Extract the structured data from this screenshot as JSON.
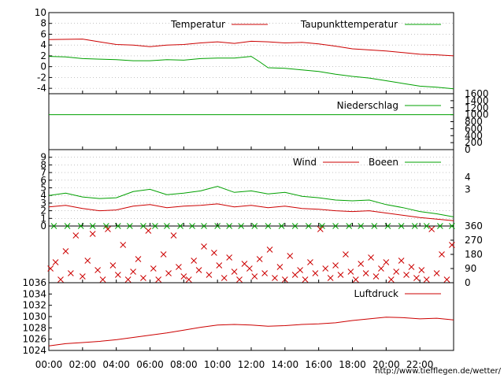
{
  "colors": {
    "red": "#cc0000",
    "green": "#00a000"
  },
  "credit": "http://www.tiefflegen.de/wetter/",
  "chart_data": [
    {
      "type": "line",
      "panel": "temperature",
      "x_unit": "hour",
      "ylim": [
        -5,
        10
      ],
      "y_ticks": [
        "10",
        "8",
        "6",
        "4",
        "2",
        "0",
        "-2",
        "-4"
      ],
      "legend_placement": "top-right",
      "series": [
        {
          "name": "Temperatur",
          "color": "red",
          "points": [
            [
              0,
              5.0
            ],
            [
              2,
              5.1
            ],
            [
              3,
              4.6
            ],
            [
              4,
              4.1
            ],
            [
              5,
              4.0
            ],
            [
              6,
              3.7
            ],
            [
              7,
              4.0
            ],
            [
              8,
              4.1
            ],
            [
              9,
              4.4
            ],
            [
              10,
              4.6
            ],
            [
              11,
              4.3
            ],
            [
              12,
              4.7
            ],
            [
              13,
              4.6
            ],
            [
              14,
              4.4
            ],
            [
              15,
              4.5
            ],
            [
              16,
              4.2
            ],
            [
              17,
              3.8
            ],
            [
              18,
              3.3
            ],
            [
              19,
              3.1
            ],
            [
              20,
              2.9
            ],
            [
              21,
              2.6
            ],
            [
              22,
              2.3
            ],
            [
              23,
              2.2
            ],
            [
              24,
              2.0
            ]
          ]
        },
        {
          "name": "Taupunkttemperatur",
          "color": "green",
          "points": [
            [
              0,
              1.9
            ],
            [
              1,
              1.8
            ],
            [
              2,
              1.5
            ],
            [
              3,
              1.4
            ],
            [
              4,
              1.3
            ],
            [
              5,
              1.1
            ],
            [
              6,
              1.1
            ],
            [
              7,
              1.3
            ],
            [
              8,
              1.2
            ],
            [
              9,
              1.5
            ],
            [
              10,
              1.6
            ],
            [
              11,
              1.6
            ],
            [
              12,
              1.9
            ],
            [
              12.5,
              0.9
            ],
            [
              13,
              -0.2
            ],
            [
              14,
              -0.3
            ],
            [
              15,
              -0.6
            ],
            [
              16,
              -0.9
            ],
            [
              17,
              -1.4
            ],
            [
              18,
              -1.8
            ],
            [
              19,
              -2.1
            ],
            [
              20,
              -2.6
            ],
            [
              21,
              -3.1
            ],
            [
              22,
              -3.6
            ],
            [
              23,
              -3.8
            ],
            [
              24,
              -4.1
            ]
          ]
        }
      ]
    },
    {
      "type": "line",
      "panel": "precipitation",
      "x_unit": "hour",
      "ylim": [
        0,
        1600
      ],
      "y_ticks_right": [
        "1600",
        "1400",
        "1200",
        "1000",
        "800",
        "600",
        "400",
        "200",
        "0"
      ],
      "series": [
        {
          "name": "Niederschlag",
          "color": "green",
          "points": [
            [
              0,
              1000
            ],
            [
              24,
              1000
            ]
          ]
        }
      ]
    },
    {
      "type": "line",
      "panel": "wind",
      "x_unit": "hour",
      "ylim": [
        0,
        10
      ],
      "y_ticks": [
        "9",
        "8",
        "7",
        "6",
        "5",
        "4",
        "3",
        "2",
        "1",
        "0"
      ],
      "y_ticks_right": [
        "4",
        "3"
      ],
      "series": [
        {
          "name": "Wind",
          "color": "red",
          "points": [
            [
              0,
              2.5
            ],
            [
              1,
              2.7
            ],
            [
              2,
              2.3
            ],
            [
              3,
              2.0
            ],
            [
              4,
              2.1
            ],
            [
              5,
              2.6
            ],
            [
              6,
              2.8
            ],
            [
              7,
              2.4
            ],
            [
              8,
              2.6
            ],
            [
              9,
              2.7
            ],
            [
              10,
              2.9
            ],
            [
              11,
              2.5
            ],
            [
              12,
              2.7
            ],
            [
              13,
              2.4
            ],
            [
              14,
              2.6
            ],
            [
              15,
              2.3
            ],
            [
              16,
              2.2
            ],
            [
              17,
              2.0
            ],
            [
              18,
              1.9
            ],
            [
              19,
              2.0
            ],
            [
              20,
              1.7
            ],
            [
              21,
              1.4
            ],
            [
              22,
              1.1
            ],
            [
              23,
              0.9
            ],
            [
              24,
              0.7
            ]
          ]
        },
        {
          "name": "Boeen",
          "color": "green",
          "points": [
            [
              0,
              4.0
            ],
            [
              1,
              4.3
            ],
            [
              2,
              3.8
            ],
            [
              3,
              3.6
            ],
            [
              4,
              3.7
            ],
            [
              5,
              4.5
            ],
            [
              6,
              4.8
            ],
            [
              7,
              4.1
            ],
            [
              8,
              4.3
            ],
            [
              9,
              4.6
            ],
            [
              10,
              5.2
            ],
            [
              11,
              4.4
            ],
            [
              12,
              4.6
            ],
            [
              13,
              4.2
            ],
            [
              14,
              4.4
            ],
            [
              15,
              3.9
            ],
            [
              16,
              3.7
            ],
            [
              17,
              3.4
            ],
            [
              18,
              3.3
            ],
            [
              19,
              3.4
            ],
            [
              20,
              2.8
            ],
            [
              21,
              2.4
            ],
            [
              22,
              1.9
            ],
            [
              23,
              1.6
            ],
            [
              24,
              1.2
            ]
          ]
        }
      ]
    },
    {
      "type": "scatter",
      "panel": "wind-direction",
      "x_unit": "hour",
      "ylim": [
        0,
        360
      ],
      "y_ticks_right": [
        "360",
        "270",
        "180",
        "90",
        "0"
      ],
      "marker": "x",
      "series": [
        {
          "color": "green",
          "points": [
            [
              0.3,
              360
            ],
            [
              1.1,
              360
            ],
            [
              1.9,
              360
            ],
            [
              2.6,
              360
            ],
            [
              3.4,
              360
            ],
            [
              4.1,
              360
            ],
            [
              4.8,
              360
            ],
            [
              5.6,
              360
            ],
            [
              6.3,
              360
            ],
            [
              7.0,
              360
            ],
            [
              7.8,
              360
            ],
            [
              8.5,
              360
            ],
            [
              9.2,
              360
            ],
            [
              10.0,
              360
            ],
            [
              10.7,
              360
            ],
            [
              11.4,
              360
            ],
            [
              12.2,
              360
            ],
            [
              13.0,
              360
            ],
            [
              13.8,
              360
            ],
            [
              14.6,
              360
            ],
            [
              15.4,
              360
            ],
            [
              16.2,
              360
            ],
            [
              17.0,
              360
            ],
            [
              17.8,
              360
            ],
            [
              18.5,
              360
            ],
            [
              19.3,
              360
            ],
            [
              20.1,
              360
            ],
            [
              20.9,
              360
            ],
            [
              21.7,
              360
            ],
            [
              22.4,
              360
            ],
            [
              23.2,
              360
            ],
            [
              23.9,
              360
            ]
          ]
        },
        {
          "color": "red",
          "points": [
            [
              0.1,
              90
            ],
            [
              0.4,
              130
            ],
            [
              0.7,
              20
            ],
            [
              1.0,
              200
            ],
            [
              1.3,
              60
            ],
            [
              1.6,
              300
            ],
            [
              2.0,
              40
            ],
            [
              2.3,
              140
            ],
            [
              2.6,
              310
            ],
            [
              2.9,
              80
            ],
            [
              3.2,
              20
            ],
            [
              3.5,
              340
            ],
            [
              3.8,
              110
            ],
            [
              4.1,
              50
            ],
            [
              4.4,
              240
            ],
            [
              4.7,
              20
            ],
            [
              5.0,
              70
            ],
            [
              5.3,
              150
            ],
            [
              5.6,
              30
            ],
            [
              5.9,
              330
            ],
            [
              6.2,
              90
            ],
            [
              6.5,
              20
            ],
            [
              6.8,
              180
            ],
            [
              7.1,
              60
            ],
            [
              7.4,
              300
            ],
            [
              7.7,
              100
            ],
            [
              8.0,
              40
            ],
            [
              8.3,
              20
            ],
            [
              8.6,
              140
            ],
            [
              8.9,
              80
            ],
            [
              9.2,
              230
            ],
            [
              9.5,
              50
            ],
            [
              9.8,
              190
            ],
            [
              10.1,
              110
            ],
            [
              10.4,
              30
            ],
            [
              10.7,
              160
            ],
            [
              11.0,
              70
            ],
            [
              11.3,
              20
            ],
            [
              11.6,
              120
            ],
            [
              11.9,
              90
            ],
            [
              12.2,
              40
            ],
            [
              12.5,
              150
            ],
            [
              12.8,
              60
            ],
            [
              13.1,
              210
            ],
            [
              13.4,
              30
            ],
            [
              13.7,
              100
            ],
            [
              14.0,
              20
            ],
            [
              14.3,
              170
            ],
            [
              14.6,
              50
            ],
            [
              14.9,
              80
            ],
            [
              15.2,
              20
            ],
            [
              15.5,
              130
            ],
            [
              15.8,
              60
            ],
            [
              16.1,
              340
            ],
            [
              16.4,
              90
            ],
            [
              16.7,
              30
            ],
            [
              17.0,
              110
            ],
            [
              17.3,
              50
            ],
            [
              17.6,
              180
            ],
            [
              17.9,
              70
            ],
            [
              18.2,
              20
            ],
            [
              18.5,
              120
            ],
            [
              18.8,
              60
            ],
            [
              19.1,
              160
            ],
            [
              19.4,
              40
            ],
            [
              19.7,
              90
            ],
            [
              20.0,
              130
            ],
            [
              20.3,
              20
            ],
            [
              20.6,
              70
            ],
            [
              20.9,
              140
            ],
            [
              21.2,
              50
            ],
            [
              21.5,
              100
            ],
            [
              21.8,
              30
            ],
            [
              22.1,
              80
            ],
            [
              22.4,
              20
            ],
            [
              22.7,
              340
            ],
            [
              23.0,
              60
            ],
            [
              23.3,
              180
            ],
            [
              23.6,
              20
            ],
            [
              23.9,
              240
            ]
          ]
        }
      ]
    },
    {
      "type": "line",
      "panel": "pressure",
      "x_unit": "hour",
      "ylim": [
        1024,
        1036
      ],
      "y_ticks": [
        "1036",
        "1034",
        "1032",
        "1030",
        "1028",
        "1026",
        "1024"
      ],
      "x_ticks": [
        "00:00",
        "02:00",
        "04:00",
        "06:00",
        "08:00",
        "10:00",
        "12:00",
        "14:00",
        "16:00",
        "18:00",
        "20:00",
        "22:00"
      ],
      "legend_placement": "top-right",
      "series": [
        {
          "name": "Luftdruck",
          "color": "red",
          "points": [
            [
              0,
              1024.8
            ],
            [
              1,
              1025.2
            ],
            [
              2,
              1025.4
            ],
            [
              3,
              1025.6
            ],
            [
              4,
              1025.9
            ],
            [
              5,
              1026.3
            ],
            [
              6,
              1026.7
            ],
            [
              7,
              1027.1
            ],
            [
              8,
              1027.6
            ],
            [
              9,
              1028.1
            ],
            [
              10,
              1028.5
            ],
            [
              11,
              1028.6
            ],
            [
              12,
              1028.5
            ],
            [
              13,
              1028.3
            ],
            [
              14,
              1028.4
            ],
            [
              15,
              1028.6
            ],
            [
              16,
              1028.7
            ],
            [
              17,
              1028.9
            ],
            [
              18,
              1029.3
            ],
            [
              19,
              1029.6
            ],
            [
              20,
              1029.9
            ],
            [
              21,
              1029.8
            ],
            [
              22,
              1029.6
            ],
            [
              23,
              1029.7
            ],
            [
              24,
              1029.4
            ]
          ]
        }
      ]
    }
  ]
}
